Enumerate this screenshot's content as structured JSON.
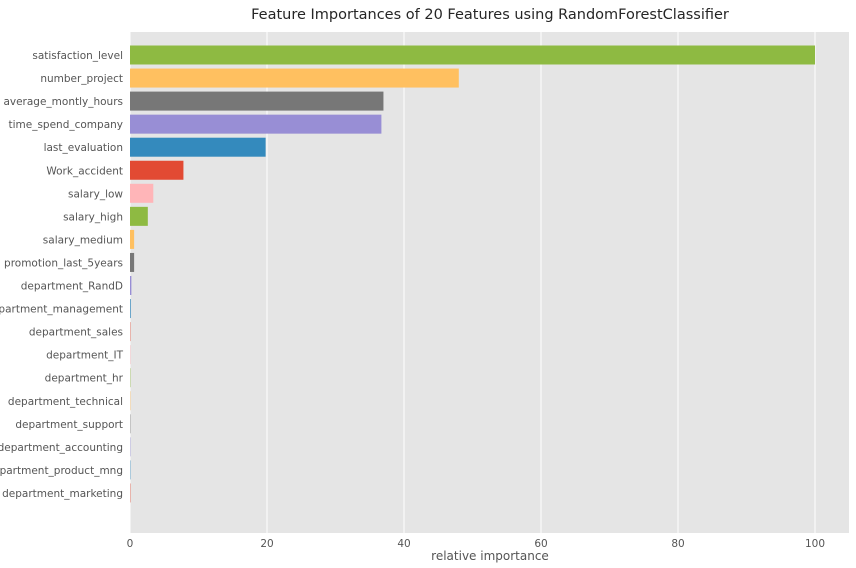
{
  "chart_data": {
    "type": "bar",
    "orientation": "horizontal",
    "title": "Feature Importances of 20 Features using RandomForestClassifier",
    "xlabel": "relative importance",
    "ylabel": "",
    "xlim": [
      0,
      105
    ],
    "xticks": [
      0,
      20,
      40,
      60,
      80,
      100
    ],
    "grid": true,
    "categories": [
      "satisfaction_level",
      "number_project",
      "average_montly_hours",
      "time_spend_company",
      "last_evaluation",
      "Work_accident",
      "salary_low",
      "salary_high",
      "salary_medium",
      "promotion_last_5years",
      "department_RandD",
      "department_management",
      "department_sales",
      "department_IT",
      "department_hr",
      "department_technical",
      "department_support",
      "department_accounting",
      "department_product_mng",
      "department_marketing"
    ],
    "values": [
      100,
      48,
      37,
      36.7,
      19.8,
      7.8,
      3.4,
      2.6,
      0.6,
      0.6,
      0.2,
      0.1,
      0.05,
      0.05,
      0.05,
      0.05,
      0.05,
      0.05,
      0.05,
      0.05
    ],
    "colors": [
      "#8EBA42",
      "#FFC060",
      "#777777",
      "#988ED5",
      "#348ABD",
      "#E24A33",
      "#FFB5B8",
      "#8EBA42",
      "#FFC060",
      "#777777",
      "#988ED5",
      "#348ABD",
      "#E24A33",
      "#FFB5B8",
      "#8EBA42",
      "#FFC060",
      "#777777",
      "#988ED5",
      "#348ABD",
      "#E24A33"
    ],
    "background": "#E5E5E5",
    "gridline_color": "#FFFFFF"
  }
}
